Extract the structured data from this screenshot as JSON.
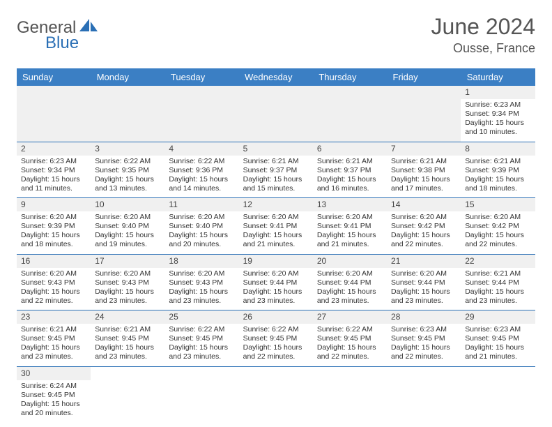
{
  "logo": {
    "part1": "General",
    "part2": "Blue"
  },
  "title": "June 2024",
  "location": "Ousse, France",
  "header_color": "#3b7fc4",
  "border_color": "#2a6fb5",
  "empty_bg": "#f0f0f0",
  "daynum_bg": "#f0f0f0",
  "days": [
    "Sunday",
    "Monday",
    "Tuesday",
    "Wednesday",
    "Thursday",
    "Friday",
    "Saturday"
  ],
  "weeks": [
    [
      null,
      null,
      null,
      null,
      null,
      null,
      {
        "n": "1",
        "sr": "Sunrise: 6:23 AM",
        "ss": "Sunset: 9:34 PM",
        "d1": "Daylight: 15 hours",
        "d2": "and 10 minutes."
      }
    ],
    [
      {
        "n": "2",
        "sr": "Sunrise: 6:23 AM",
        "ss": "Sunset: 9:34 PM",
        "d1": "Daylight: 15 hours",
        "d2": "and 11 minutes."
      },
      {
        "n": "3",
        "sr": "Sunrise: 6:22 AM",
        "ss": "Sunset: 9:35 PM",
        "d1": "Daylight: 15 hours",
        "d2": "and 13 minutes."
      },
      {
        "n": "4",
        "sr": "Sunrise: 6:22 AM",
        "ss": "Sunset: 9:36 PM",
        "d1": "Daylight: 15 hours",
        "d2": "and 14 minutes."
      },
      {
        "n": "5",
        "sr": "Sunrise: 6:21 AM",
        "ss": "Sunset: 9:37 PM",
        "d1": "Daylight: 15 hours",
        "d2": "and 15 minutes."
      },
      {
        "n": "6",
        "sr": "Sunrise: 6:21 AM",
        "ss": "Sunset: 9:37 PM",
        "d1": "Daylight: 15 hours",
        "d2": "and 16 minutes."
      },
      {
        "n": "7",
        "sr": "Sunrise: 6:21 AM",
        "ss": "Sunset: 9:38 PM",
        "d1": "Daylight: 15 hours",
        "d2": "and 17 minutes."
      },
      {
        "n": "8",
        "sr": "Sunrise: 6:21 AM",
        "ss": "Sunset: 9:39 PM",
        "d1": "Daylight: 15 hours",
        "d2": "and 18 minutes."
      }
    ],
    [
      {
        "n": "9",
        "sr": "Sunrise: 6:20 AM",
        "ss": "Sunset: 9:39 PM",
        "d1": "Daylight: 15 hours",
        "d2": "and 18 minutes."
      },
      {
        "n": "10",
        "sr": "Sunrise: 6:20 AM",
        "ss": "Sunset: 9:40 PM",
        "d1": "Daylight: 15 hours",
        "d2": "and 19 minutes."
      },
      {
        "n": "11",
        "sr": "Sunrise: 6:20 AM",
        "ss": "Sunset: 9:40 PM",
        "d1": "Daylight: 15 hours",
        "d2": "and 20 minutes."
      },
      {
        "n": "12",
        "sr": "Sunrise: 6:20 AM",
        "ss": "Sunset: 9:41 PM",
        "d1": "Daylight: 15 hours",
        "d2": "and 21 minutes."
      },
      {
        "n": "13",
        "sr": "Sunrise: 6:20 AM",
        "ss": "Sunset: 9:41 PM",
        "d1": "Daylight: 15 hours",
        "d2": "and 21 minutes."
      },
      {
        "n": "14",
        "sr": "Sunrise: 6:20 AM",
        "ss": "Sunset: 9:42 PM",
        "d1": "Daylight: 15 hours",
        "d2": "and 22 minutes."
      },
      {
        "n": "15",
        "sr": "Sunrise: 6:20 AM",
        "ss": "Sunset: 9:42 PM",
        "d1": "Daylight: 15 hours",
        "d2": "and 22 minutes."
      }
    ],
    [
      {
        "n": "16",
        "sr": "Sunrise: 6:20 AM",
        "ss": "Sunset: 9:43 PM",
        "d1": "Daylight: 15 hours",
        "d2": "and 22 minutes."
      },
      {
        "n": "17",
        "sr": "Sunrise: 6:20 AM",
        "ss": "Sunset: 9:43 PM",
        "d1": "Daylight: 15 hours",
        "d2": "and 23 minutes."
      },
      {
        "n": "18",
        "sr": "Sunrise: 6:20 AM",
        "ss": "Sunset: 9:43 PM",
        "d1": "Daylight: 15 hours",
        "d2": "and 23 minutes."
      },
      {
        "n": "19",
        "sr": "Sunrise: 6:20 AM",
        "ss": "Sunset: 9:44 PM",
        "d1": "Daylight: 15 hours",
        "d2": "and 23 minutes."
      },
      {
        "n": "20",
        "sr": "Sunrise: 6:20 AM",
        "ss": "Sunset: 9:44 PM",
        "d1": "Daylight: 15 hours",
        "d2": "and 23 minutes."
      },
      {
        "n": "21",
        "sr": "Sunrise: 6:20 AM",
        "ss": "Sunset: 9:44 PM",
        "d1": "Daylight: 15 hours",
        "d2": "and 23 minutes."
      },
      {
        "n": "22",
        "sr": "Sunrise: 6:21 AM",
        "ss": "Sunset: 9:44 PM",
        "d1": "Daylight: 15 hours",
        "d2": "and 23 minutes."
      }
    ],
    [
      {
        "n": "23",
        "sr": "Sunrise: 6:21 AM",
        "ss": "Sunset: 9:45 PM",
        "d1": "Daylight: 15 hours",
        "d2": "and 23 minutes."
      },
      {
        "n": "24",
        "sr": "Sunrise: 6:21 AM",
        "ss": "Sunset: 9:45 PM",
        "d1": "Daylight: 15 hours",
        "d2": "and 23 minutes."
      },
      {
        "n": "25",
        "sr": "Sunrise: 6:22 AM",
        "ss": "Sunset: 9:45 PM",
        "d1": "Daylight: 15 hours",
        "d2": "and 23 minutes."
      },
      {
        "n": "26",
        "sr": "Sunrise: 6:22 AM",
        "ss": "Sunset: 9:45 PM",
        "d1": "Daylight: 15 hours",
        "d2": "and 22 minutes."
      },
      {
        "n": "27",
        "sr": "Sunrise: 6:22 AM",
        "ss": "Sunset: 9:45 PM",
        "d1": "Daylight: 15 hours",
        "d2": "and 22 minutes."
      },
      {
        "n": "28",
        "sr": "Sunrise: 6:23 AM",
        "ss": "Sunset: 9:45 PM",
        "d1": "Daylight: 15 hours",
        "d2": "and 22 minutes."
      },
      {
        "n": "29",
        "sr": "Sunrise: 6:23 AM",
        "ss": "Sunset: 9:45 PM",
        "d1": "Daylight: 15 hours",
        "d2": "and 21 minutes."
      }
    ],
    [
      {
        "n": "30",
        "sr": "Sunrise: 6:24 AM",
        "ss": "Sunset: 9:45 PM",
        "d1": "Daylight: 15 hours",
        "d2": "and 20 minutes."
      },
      null,
      null,
      null,
      null,
      null,
      null
    ]
  ]
}
